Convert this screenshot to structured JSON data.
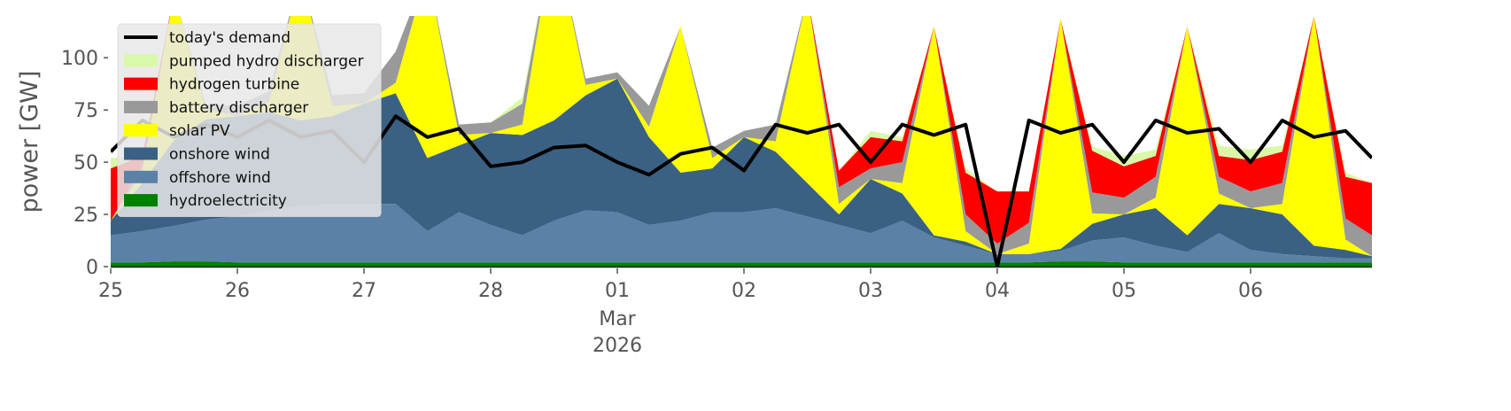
{
  "chart_data": {
    "type": "area",
    "y_label": "power [GW]",
    "x": [
      "2026-02-25T00:00",
      "2026-02-25T06:00",
      "2026-02-25T12:00",
      "2026-02-25T18:00",
      "2026-02-26T00:00",
      "2026-02-26T06:00",
      "2026-02-26T12:00",
      "2026-02-26T18:00",
      "2026-02-27T00:00",
      "2026-02-27T06:00",
      "2026-02-27T12:00",
      "2026-02-27T18:00",
      "2026-02-28T00:00",
      "2026-02-28T06:00",
      "2026-02-28T12:00",
      "2026-02-28T18:00",
      "2026-03-01T00:00",
      "2026-03-01T06:00",
      "2026-03-01T12:00",
      "2026-03-01T18:00",
      "2026-03-02T00:00",
      "2026-03-02T06:00",
      "2026-03-02T12:00",
      "2026-03-02T18:00",
      "2026-03-03T00:00",
      "2026-03-03T06:00",
      "2026-03-03T12:00",
      "2026-03-03T18:00",
      "2026-03-04T00:00",
      "2026-03-04T06:00",
      "2026-03-04T12:00",
      "2026-03-04T18:00",
      "2026-03-05T00:00",
      "2026-03-05T06:00",
      "2026-03-05T12:00",
      "2026-03-05T18:00",
      "2026-03-06T00:00",
      "2026-03-06T06:00",
      "2026-03-06T12:00",
      "2026-03-06T18:00",
      "2026-03-06T23:00"
    ],
    "xlim": [
      "2026-02-25T00:00",
      "2026-03-06T23:00"
    ],
    "xticks": [
      {
        "value": "2026-02-25T00:00",
        "label": "25"
      },
      {
        "value": "2026-02-26T00:00",
        "label": "26"
      },
      {
        "value": "2026-02-27T00:00",
        "label": "27"
      },
      {
        "value": "2026-02-28T00:00",
        "label": "28"
      },
      {
        "value": "2026-03-01T00:00",
        "label": "01"
      },
      {
        "value": "2026-03-02T00:00",
        "label": "02"
      },
      {
        "value": "2026-03-03T00:00",
        "label": "03"
      },
      {
        "value": "2026-03-04T00:00",
        "label": "04"
      },
      {
        "value": "2026-03-05T00:00",
        "label": "05"
      },
      {
        "value": "2026-03-06T00:00",
        "label": "06"
      }
    ],
    "x_secondary_label": {
      "value": "2026-03-01T00:00",
      "lines": [
        "Mar",
        "2026"
      ]
    },
    "ylim": [
      0,
      120
    ],
    "yticks": [
      0,
      25,
      50,
      75,
      100
    ],
    "legend": "upper left",
    "series": [
      {
        "name": "hydroelectricity",
        "color": "#008000",
        "values": [
          2,
          2,
          2.5,
          2.5,
          2,
          2,
          2,
          2,
          2,
          2,
          2,
          2,
          2,
          2,
          2,
          2,
          2,
          2,
          2,
          2,
          2,
          2,
          2,
          2,
          2,
          2,
          2,
          2,
          2,
          2,
          2.5,
          2.5,
          2,
          2,
          2,
          2,
          2,
          2,
          2,
          2,
          2
        ]
      },
      {
        "name": "offshore wind",
        "color": "#5c81a6",
        "values": [
          13,
          15,
          17,
          20,
          22,
          25,
          27,
          28,
          28,
          28,
          15,
          24,
          18,
          13,
          20,
          25,
          24,
          18,
          20,
          24,
          24,
          26,
          22,
          18,
          14,
          20,
          12,
          8,
          4,
          4,
          5,
          10,
          12,
          8,
          5,
          14,
          6,
          4,
          3,
          2,
          2
        ]
      },
      {
        "name": "onshore wind",
        "color": "#3a6183",
        "values": [
          7,
          23,
          41,
          48,
          48,
          47,
          41,
          42,
          48,
          53,
          35,
          32,
          44,
          48,
          48,
          55,
          64,
          42,
          23,
          21,
          36,
          27,
          16,
          5,
          26,
          13,
          1,
          2,
          0,
          0,
          1,
          8,
          11,
          18,
          8,
          14,
          20,
          19,
          5,
          4,
          1
        ]
      },
      {
        "name": "solar PV",
        "color": "#ffff00",
        "values": [
          0,
          5,
          70,
          5,
          0,
          5,
          70,
          5,
          0,
          5,
          90,
          5,
          0,
          5,
          90,
          5,
          0,
          5,
          70,
          5,
          0,
          5,
          90,
          5,
          0,
          5,
          100,
          5,
          0,
          5,
          110,
          5,
          0,
          5,
          100,
          5,
          0,
          5,
          110,
          5,
          0
        ]
      },
      {
        "name": "battery discharger",
        "color": "#999999",
        "values": [
          0,
          3,
          0,
          2,
          5,
          5,
          0,
          5,
          5,
          15,
          0,
          5,
          5,
          10,
          0,
          3,
          3,
          10,
          0,
          5,
          3,
          8,
          0,
          8,
          5,
          10,
          0,
          8,
          5,
          10,
          0,
          10,
          8,
          10,
          0,
          8,
          8,
          10,
          0,
          10,
          10
        ]
      },
      {
        "name": "hydrogen turbine",
        "color": "#ff0000",
        "values": [
          25,
          5,
          0,
          0,
          0,
          0,
          0,
          0,
          0,
          0,
          0,
          0,
          0,
          0,
          0,
          0,
          0,
          0,
          0,
          0,
          0,
          0,
          0,
          8,
          15,
          10,
          0,
          20,
          25,
          15,
          0,
          20,
          15,
          10,
          0,
          10,
          15,
          15,
          0,
          20,
          25
        ]
      },
      {
        "name": "pumped hydro discharger",
        "color": "#d9f9a8",
        "values": [
          5,
          0,
          0,
          0,
          0,
          0,
          0,
          0,
          0,
          0,
          0,
          0,
          0,
          3,
          0,
          0,
          0,
          0,
          0,
          0,
          0,
          0,
          0,
          0,
          3,
          2,
          0,
          2,
          0,
          0,
          0,
          2,
          5,
          3,
          0,
          5,
          5,
          3,
          0,
          2,
          0
        ]
      },
      {
        "name": "today's demand",
        "type": "line",
        "color": "#000000",
        "values": [
          55,
          70,
          62,
          68,
          62,
          70,
          62,
          65,
          50,
          72,
          62,
          66,
          48,
          50,
          57,
          58,
          50,
          44,
          54,
          57,
          46,
          68,
          64,
          68,
          50,
          68,
          63,
          68,
          0,
          70,
          64,
          68,
          50,
          70,
          64,
          66,
          50,
          70,
          62,
          65,
          52
        ]
      }
    ]
  }
}
